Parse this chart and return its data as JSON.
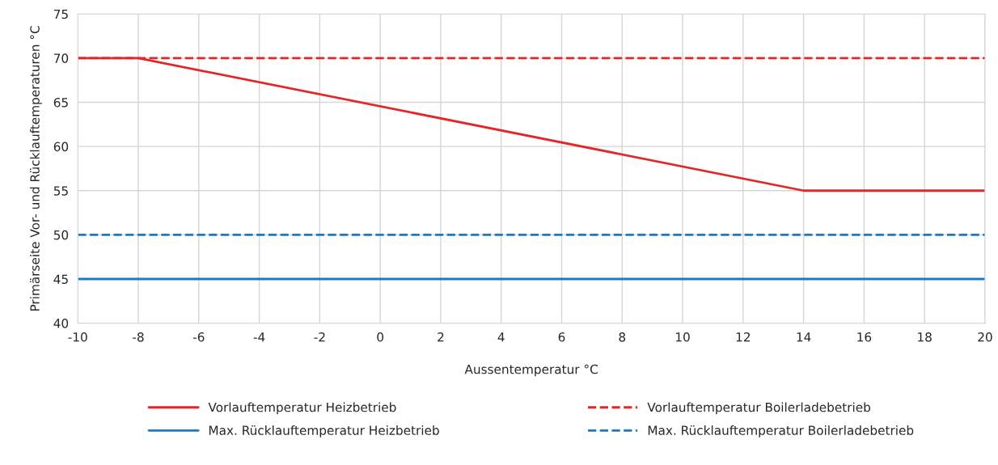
{
  "chart_data": {
    "type": "line",
    "xlabel": "Aussentemperatur °C",
    "ylabel": "Primärseite Vor- und Rücklauftemperaturen °C",
    "series": [
      {
        "name": "Vorlauftemperatur Heizbetrieb",
        "color": "#e52629",
        "line_style": "solid",
        "x": [
          -10,
          -8,
          14,
          20
        ],
        "values": [
          70,
          70,
          55,
          55
        ]
      },
      {
        "name": "Vorlauftemperatur Boilerladebetrieb",
        "color": "#e52629",
        "line_style": "dashed",
        "x": [
          -10,
          20
        ],
        "values": [
          70,
          70
        ]
      },
      {
        "name": "Max. Rücklauftemperatur Heizbetrieb",
        "color": "#1b7ac2",
        "line_style": "solid",
        "x": [
          -10,
          20
        ],
        "values": [
          45,
          45
        ]
      },
      {
        "name": "Max. Rücklauftemperatur Boilerladebetrieb",
        "color": "#1b7ac2",
        "line_style": "dashed",
        "x": [
          -10,
          20
        ],
        "values": [
          50,
          50
        ]
      }
    ],
    "xlim": [
      -10,
      20
    ],
    "xticks": [
      -10,
      -8,
      -6,
      -4,
      -2,
      0,
      2,
      4,
      6,
      8,
      10,
      12,
      14,
      16,
      18,
      20
    ],
    "ylim": [
      40,
      75
    ],
    "yticks": [
      40,
      45,
      50,
      55,
      60,
      65,
      70,
      75
    ],
    "grid": true,
    "legend": "bottom",
    "marker": "none"
  }
}
